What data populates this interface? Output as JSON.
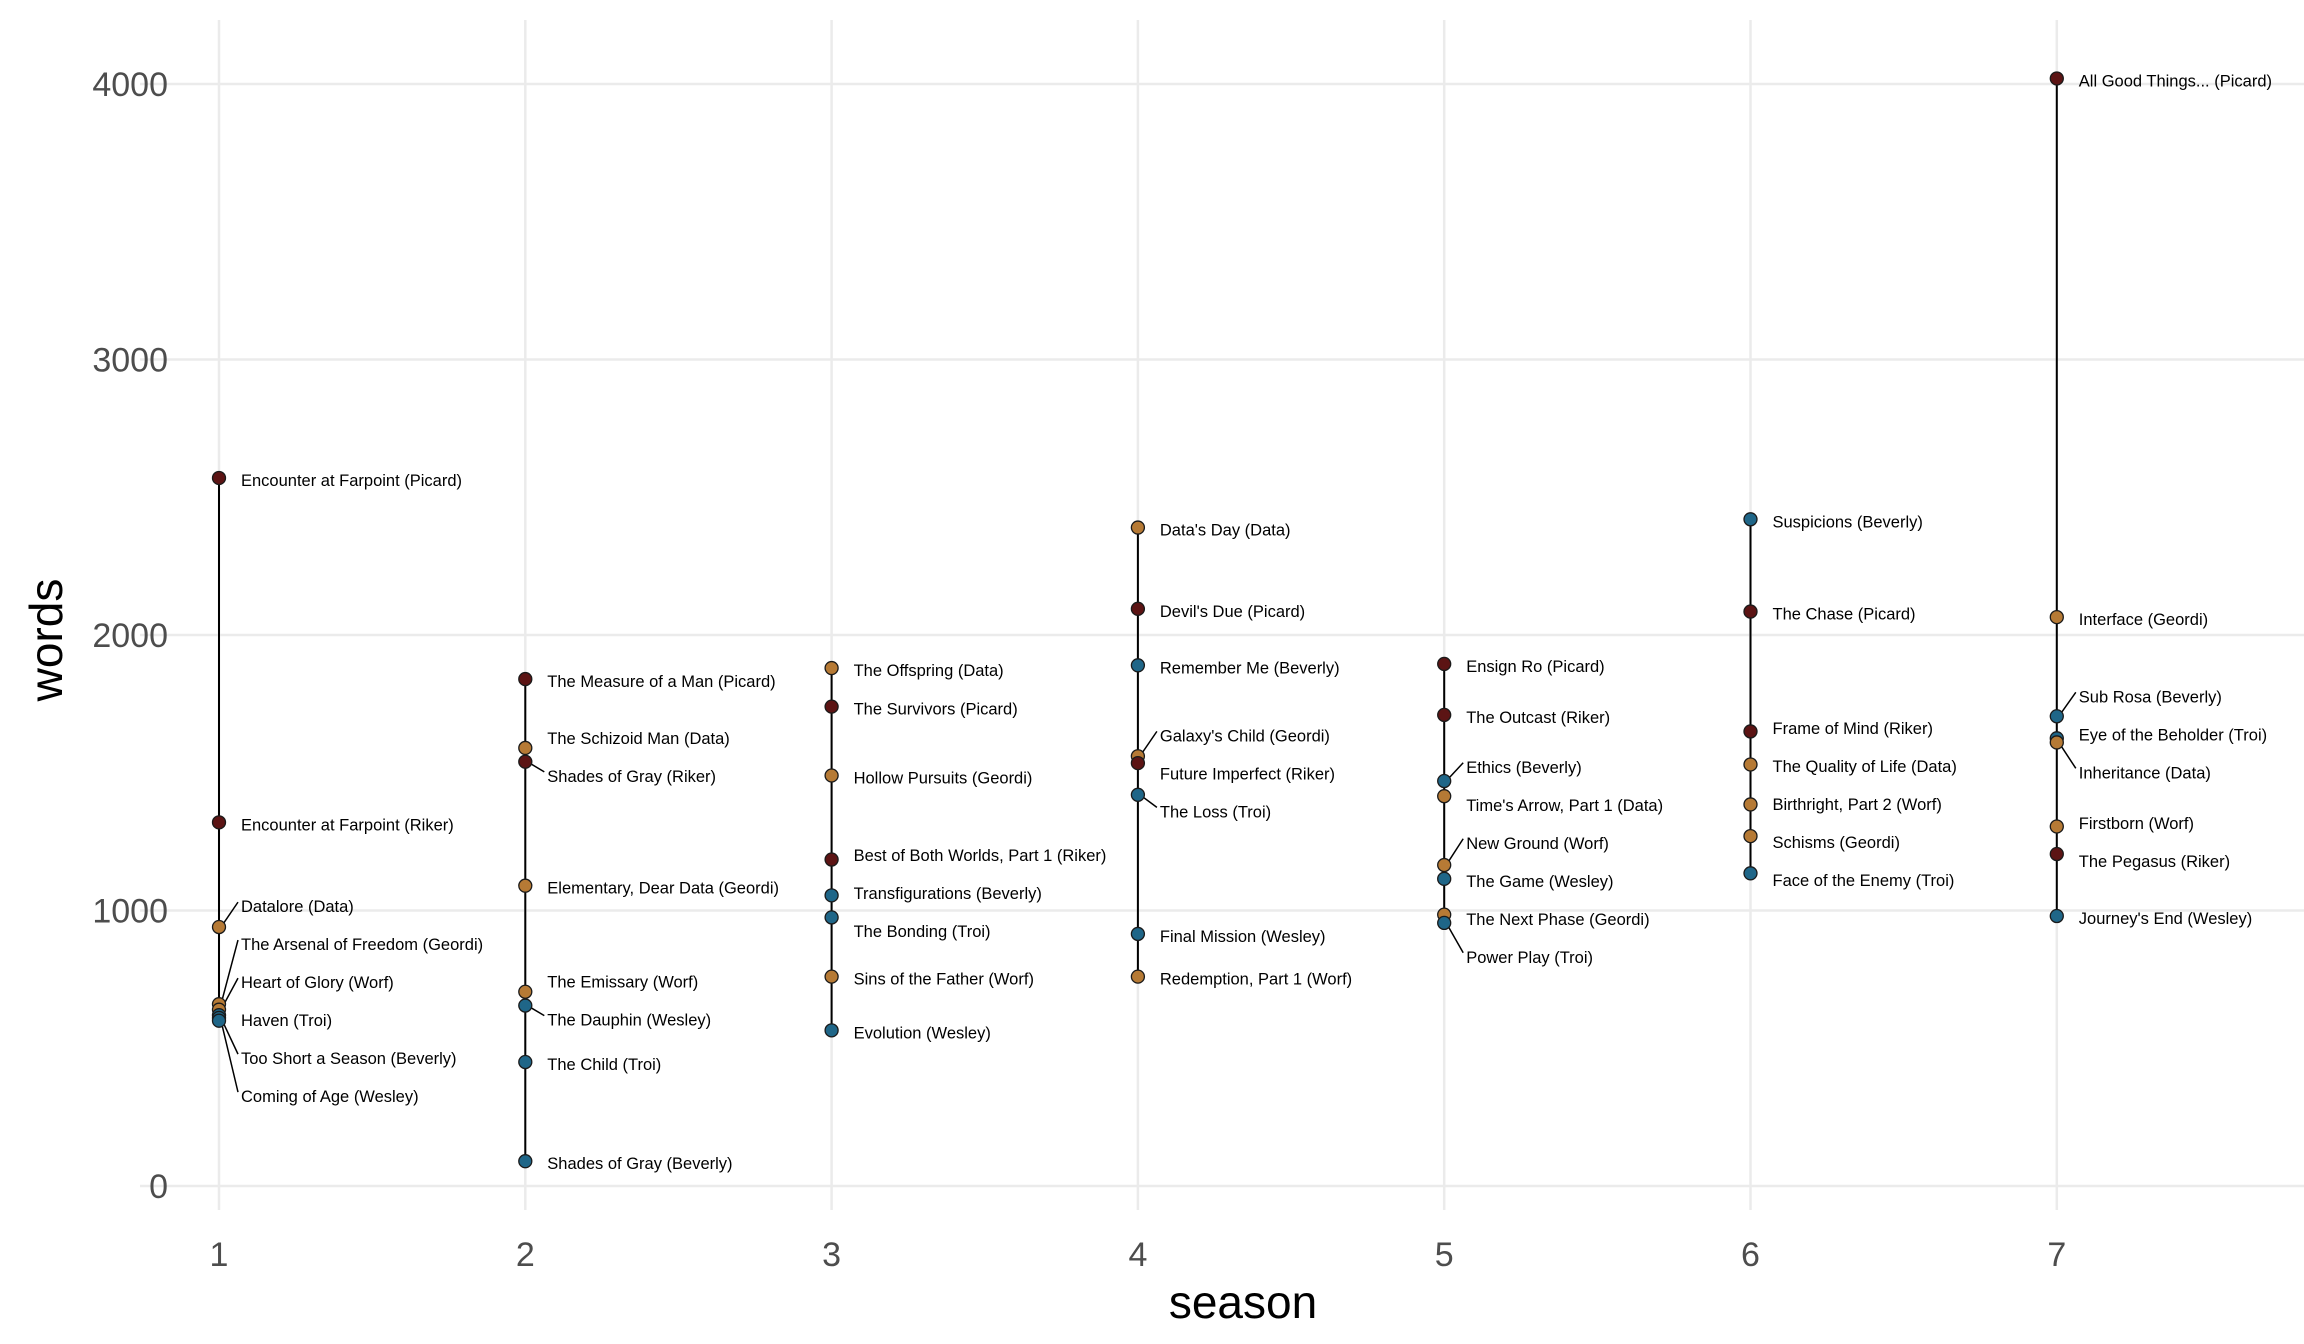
{
  "chart_data": {
    "type": "scatter",
    "xlabel": "season",
    "ylabel": "words",
    "xlim": [
      1,
      7
    ],
    "ylim": [
      0,
      4000
    ],
    "x_ticks": [
      "1",
      "2",
      "3",
      "4",
      "5",
      "6",
      "7"
    ],
    "y_ticks": [
      "0",
      "1000",
      "2000",
      "3000",
      "4000"
    ],
    "grid": true,
    "character_colors": {
      "Picard": "#5c1414",
      "Riker": "#5c1414",
      "Data": "#b67a35",
      "Geordi": "#b67a35",
      "Worf": "#b67a35",
      "Beverly": "#1f6688",
      "Troi": "#1f6688",
      "Wesley": "#1f6688"
    },
    "points": [
      {
        "season": 1,
        "words": 2570,
        "label": "Encounter at Farpoint (Picard)",
        "character": "Picard"
      },
      {
        "season": 1,
        "words": 1320,
        "label": "Encounter at Farpoint (Riker)",
        "character": "Riker"
      },
      {
        "season": 1,
        "words": 940,
        "label": "Datalore (Data)",
        "character": "Data"
      },
      {
        "season": 1,
        "words": 660,
        "label": "The Arsenal of Freedom (Geordi)",
        "character": "Geordi"
      },
      {
        "season": 1,
        "words": 640,
        "label": "Heart of Glory (Worf)",
        "character": "Worf"
      },
      {
        "season": 1,
        "words": 620,
        "label": "Haven (Troi)",
        "character": "Troi"
      },
      {
        "season": 1,
        "words": 610,
        "label": "Too Short a Season (Beverly)",
        "character": "Beverly"
      },
      {
        "season": 1,
        "words": 600,
        "label": "Coming of Age (Wesley)",
        "character": "Wesley"
      },
      {
        "season": 2,
        "words": 1840,
        "label": "The Measure of a Man (Picard)",
        "character": "Picard"
      },
      {
        "season": 2,
        "words": 1590,
        "label": "The Schizoid Man (Data)",
        "character": "Data"
      },
      {
        "season": 2,
        "words": 1540,
        "label": "Shades of Gray (Riker)",
        "character": "Riker"
      },
      {
        "season": 2,
        "words": 1090,
        "label": "Elementary, Dear Data (Geordi)",
        "character": "Geordi"
      },
      {
        "season": 2,
        "words": 705,
        "label": "The Emissary (Worf)",
        "character": "Worf"
      },
      {
        "season": 2,
        "words": 655,
        "label": "The Dauphin (Wesley)",
        "character": "Wesley"
      },
      {
        "season": 2,
        "words": 450,
        "label": "The Child (Troi)",
        "character": "Troi"
      },
      {
        "season": 2,
        "words": 90,
        "label": "Shades of Gray (Beverly)",
        "character": "Beverly"
      },
      {
        "season": 3,
        "words": 1880,
        "label": "The Offspring (Data)",
        "character": "Data"
      },
      {
        "season": 3,
        "words": 1740,
        "label": "The Survivors (Picard)",
        "character": "Picard"
      },
      {
        "season": 3,
        "words": 1490,
        "label": "Hollow Pursuits (Geordi)",
        "character": "Geordi"
      },
      {
        "season": 3,
        "words": 1185,
        "label": "Best of Both Worlds, Part 1 (Riker)",
        "character": "Riker"
      },
      {
        "season": 3,
        "words": 1055,
        "label": "Transfigurations (Beverly)",
        "character": "Beverly"
      },
      {
        "season": 3,
        "words": 975,
        "label": "The Bonding (Troi)",
        "character": "Troi"
      },
      {
        "season": 3,
        "words": 760,
        "label": "Sins of the Father (Worf)",
        "character": "Worf"
      },
      {
        "season": 3,
        "words": 565,
        "label": "Evolution (Wesley)",
        "character": "Wesley"
      },
      {
        "season": 4,
        "words": 2390,
        "label": "Data's Day (Data)",
        "character": "Data"
      },
      {
        "season": 4,
        "words": 2095,
        "label": "Devil's Due (Picard)",
        "character": "Picard"
      },
      {
        "season": 4,
        "words": 1890,
        "label": "Remember Me (Beverly)",
        "character": "Beverly"
      },
      {
        "season": 4,
        "words": 1560,
        "label": "Galaxy's Child (Geordi)",
        "character": "Geordi"
      },
      {
        "season": 4,
        "words": 1535,
        "label": "Future Imperfect (Riker)",
        "character": "Riker"
      },
      {
        "season": 4,
        "words": 1420,
        "label": "The Loss (Troi)",
        "character": "Troi"
      },
      {
        "season": 4,
        "words": 915,
        "label": "Final Mission (Wesley)",
        "character": "Wesley"
      },
      {
        "season": 4,
        "words": 760,
        "label": "Redemption, Part 1 (Worf)",
        "character": "Worf"
      },
      {
        "season": 5,
        "words": 1895,
        "label": "Ensign Ro (Picard)",
        "character": "Picard"
      },
      {
        "season": 5,
        "words": 1710,
        "label": "The Outcast (Riker)",
        "character": "Riker"
      },
      {
        "season": 5,
        "words": 1470,
        "label": "Ethics (Beverly)",
        "character": "Beverly"
      },
      {
        "season": 5,
        "words": 1415,
        "label": "Time's Arrow, Part 1 (Data)",
        "character": "Data"
      },
      {
        "season": 5,
        "words": 1165,
        "label": "New Ground (Worf)",
        "character": "Worf"
      },
      {
        "season": 5,
        "words": 1115,
        "label": "The Game (Wesley)",
        "character": "Wesley"
      },
      {
        "season": 5,
        "words": 985,
        "label": "The Next Phase (Geordi)",
        "character": "Geordi"
      },
      {
        "season": 5,
        "words": 955,
        "label": "Power Play (Troi)",
        "character": "Troi"
      },
      {
        "season": 6,
        "words": 2420,
        "label": "Suspicions (Beverly)",
        "character": "Beverly"
      },
      {
        "season": 6,
        "words": 2085,
        "label": "The Chase (Picard)",
        "character": "Picard"
      },
      {
        "season": 6,
        "words": 1650,
        "label": "Frame of Mind (Riker)",
        "character": "Riker"
      },
      {
        "season": 6,
        "words": 1530,
        "label": "The Quality of Life (Data)",
        "character": "Data"
      },
      {
        "season": 6,
        "words": 1385,
        "label": "Birthright, Part 2 (Worf)",
        "character": "Worf"
      },
      {
        "season": 6,
        "words": 1270,
        "label": "Schisms (Geordi)",
        "character": "Geordi"
      },
      {
        "season": 6,
        "words": 1135,
        "label": "Face of the Enemy (Troi)",
        "character": "Troi"
      },
      {
        "season": 7,
        "words": 4020,
        "label": "All Good Things... (Picard)",
        "character": "Picard"
      },
      {
        "season": 7,
        "words": 2065,
        "label": "Interface (Geordi)",
        "character": "Geordi"
      },
      {
        "season": 7,
        "words": 1705,
        "label": "Sub Rosa (Beverly)",
        "character": "Beverly"
      },
      {
        "season": 7,
        "words": 1625,
        "label": "Eye of the Beholder (Troi)",
        "character": "Troi"
      },
      {
        "season": 7,
        "words": 1610,
        "label": "Inheritance (Data)",
        "character": "Data"
      },
      {
        "season": 7,
        "words": 1305,
        "label": "Firstborn (Worf)",
        "character": "Worf"
      },
      {
        "season": 7,
        "words": 1205,
        "label": "The Pegasus (Riker)",
        "character": "Riker"
      },
      {
        "season": 7,
        "words": 980,
        "label": "Journey's End (Wesley)",
        "character": "Wesley"
      }
    ]
  }
}
